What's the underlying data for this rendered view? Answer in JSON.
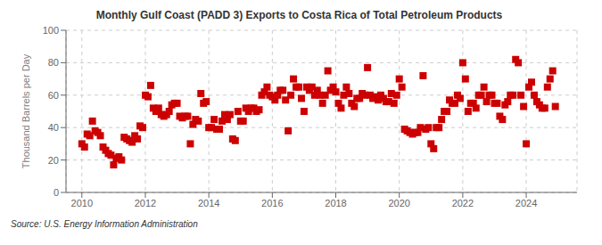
{
  "chart_data": {
    "type": "scatter",
    "title": "Monthly Gulf Coast (PADD 3) Exports to Costa Rica of Total Petroleum Products",
    "ylabel": "Thousand Barrels per Day",
    "annotation": "Source: U.S. Energy Information Administration",
    "color": "#cc0000",
    "marker": "square",
    "grid": true,
    "xlim": [
      2009.5,
      2025.6
    ],
    "xticks": [
      2010,
      2012,
      2014,
      2016,
      2018,
      2020,
      2022,
      2024
    ],
    "ylim": [
      0,
      100
    ],
    "yticks": [
      0,
      20,
      40,
      60,
      80,
      100
    ],
    "x": [
      2010.0,
      2010.083,
      2010.167,
      2010.25,
      2010.333,
      2010.417,
      2010.5,
      2010.583,
      2010.667,
      2010.75,
      2010.833,
      2010.917,
      2011.0,
      2011.083,
      2011.167,
      2011.25,
      2011.333,
      2011.417,
      2011.5,
      2011.583,
      2011.667,
      2011.75,
      2011.833,
      2011.917,
      2012.0,
      2012.083,
      2012.167,
      2012.25,
      2012.333,
      2012.417,
      2012.5,
      2012.583,
      2012.667,
      2012.75,
      2012.833,
      2012.917,
      2013.0,
      2013.083,
      2013.167,
      2013.25,
      2013.333,
      2013.417,
      2013.5,
      2013.583,
      2013.667,
      2013.75,
      2013.833,
      2013.917,
      2014.0,
      2014.083,
      2014.167,
      2014.25,
      2014.333,
      2014.417,
      2014.5,
      2014.583,
      2014.667,
      2014.75,
      2014.833,
      2014.917,
      2015.0,
      2015.083,
      2015.167,
      2015.25,
      2015.333,
      2015.417,
      2015.5,
      2015.583,
      2015.667,
      2015.75,
      2015.833,
      2015.917,
      2016.0,
      2016.083,
      2016.167,
      2016.25,
      2016.333,
      2016.417,
      2016.5,
      2016.583,
      2016.667,
      2016.75,
      2016.833,
      2016.917,
      2017.0,
      2017.083,
      2017.167,
      2017.25,
      2017.333,
      2017.417,
      2017.5,
      2017.583,
      2017.667,
      2017.75,
      2017.833,
      2017.917,
      2018.0,
      2018.083,
      2018.167,
      2018.25,
      2018.333,
      2018.417,
      2018.5,
      2018.583,
      2018.667,
      2018.75,
      2018.833,
      2018.917,
      2019.0,
      2019.083,
      2019.167,
      2019.25,
      2019.333,
      2019.417,
      2019.5,
      2019.583,
      2019.667,
      2019.75,
      2019.833,
      2019.917,
      2020.0,
      2020.083,
      2020.167,
      2020.25,
      2020.333,
      2020.417,
      2020.5,
      2020.583,
      2020.667,
      2020.75,
      2020.833,
      2020.917,
      2021.0,
      2021.083,
      2021.167,
      2021.25,
      2021.333,
      2021.417,
      2021.5,
      2021.583,
      2021.667,
      2021.75,
      2021.833,
      2021.917,
      2022.0,
      2022.083,
      2022.167,
      2022.25,
      2022.333,
      2022.417,
      2022.5,
      2022.583,
      2022.667,
      2022.75,
      2022.833,
      2022.917,
      2023.0,
      2023.083,
      2023.167,
      2023.25,
      2023.333,
      2023.417,
      2023.5,
      2023.583,
      2023.667,
      2023.75,
      2023.833,
      2023.917,
      2024.0,
      2024.083,
      2024.167,
      2024.25,
      2024.333,
      2024.417,
      2024.5,
      2024.583,
      2024.667,
      2024.75,
      2024.833,
      2024.917
    ],
    "values": [
      30,
      28,
      36,
      35,
      44,
      38,
      37,
      35,
      28,
      26,
      24,
      23,
      17,
      21,
      22,
      20,
      34,
      33,
      32,
      31,
      35,
      33,
      41,
      40,
      60,
      59,
      66,
      52,
      50,
      52,
      48,
      47,
      48,
      50,
      54,
      55,
      55,
      47,
      46,
      47,
      47,
      30,
      42,
      45,
      44,
      61,
      55,
      56,
      40,
      40,
      45,
      39,
      39,
      44,
      48,
      45,
      48,
      33,
      32,
      50,
      44,
      44,
      52,
      50,
      52,
      52,
      50,
      51,
      60,
      62,
      65,
      60,
      59,
      57,
      60,
      63,
      63,
      57,
      38,
      60,
      70,
      65,
      65,
      58,
      50,
      65,
      63,
      65,
      60,
      63,
      60,
      55,
      60,
      75,
      63,
      65,
      62,
      55,
      52,
      60,
      65,
      61,
      55,
      53,
      58,
      58,
      61,
      60,
      77,
      60,
      58,
      59,
      57,
      60,
      58,
      56,
      56,
      61,
      55,
      60,
      70,
      65,
      39,
      38,
      37,
      36,
      37,
      37,
      40,
      72,
      39,
      40,
      30,
      27,
      40,
      40,
      45,
      50,
      50,
      57,
      55,
      55,
      60,
      58,
      80,
      70,
      50,
      55,
      55,
      52,
      60,
      60,
      65,
      56,
      60,
      60,
      55,
      55,
      47,
      45,
      54,
      56,
      60,
      60,
      82,
      80,
      60,
      53,
      30,
      65,
      68,
      60,
      56,
      54,
      52,
      52,
      65,
      70,
      75,
      53
    ]
  }
}
